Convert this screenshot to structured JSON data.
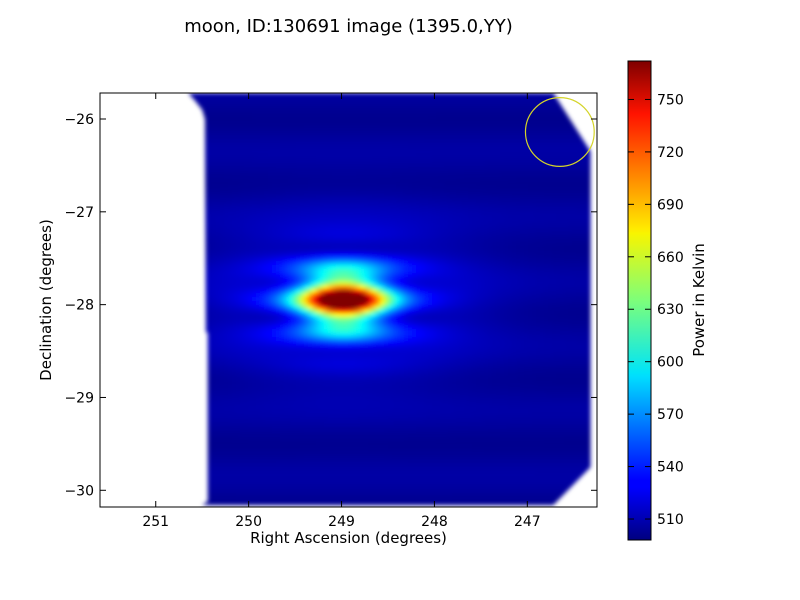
{
  "chart_data": {
    "type": "heatmap",
    "title": "moon, ID:130691 image (1395.0,YY)",
    "xlabel": "Right Ascension (degrees)",
    "ylabel": "Declination (degrees)",
    "xlim": [
      251.6,
      246.25
    ],
    "ylim": [
      -30.18,
      -25.72
    ],
    "x_ticks": [
      251,
      250,
      249,
      248,
      247
    ],
    "y_ticks": [
      -26,
      -27,
      -28,
      -29,
      -30
    ],
    "x_tick_labels": [
      "251",
      "250",
      "249",
      "248",
      "247"
    ],
    "y_tick_labels": [
      "−26",
      "−27",
      "−28",
      "−29",
      "−30"
    ],
    "colorbar": {
      "label": "Power in Kelvin",
      "range": [
        498,
        772
      ],
      "ticks": [
        510,
        540,
        570,
        600,
        630,
        660,
        690,
        720,
        750
      ],
      "tick_labels": [
        "510",
        "540",
        "570",
        "600",
        "630",
        "660",
        "690",
        "720",
        "750"
      ],
      "colormap": "jet"
    },
    "background_level": 505,
    "source": {
      "center_ra": 248.98,
      "center_dec": -27.95,
      "peak": 772,
      "ra_width_deg": 0.42,
      "dec_width_deg": 0.26,
      "fringe_period_deg": 0.19
    },
    "coverage_polygon_radec": [
      [
        251.15,
        -25.72
      ],
      [
        250.65,
        -25.72
      ],
      [
        250.58,
        -25.8
      ],
      [
        250.5,
        -25.9
      ],
      [
        250.47,
        -26.0
      ],
      [
        250.46,
        -28.3
      ],
      [
        250.44,
        -28.3
      ],
      [
        250.44,
        -30.12
      ],
      [
        250.5,
        -30.16
      ],
      [
        246.72,
        -30.16
      ],
      [
        246.32,
        -29.75
      ],
      [
        246.32,
        -26.35
      ],
      [
        246.72,
        -25.72
      ]
    ],
    "beam_circle": {
      "center_ra": 246.65,
      "center_dec": -26.14,
      "radius_deg": 0.37,
      "color": "#d4d42a"
    }
  }
}
